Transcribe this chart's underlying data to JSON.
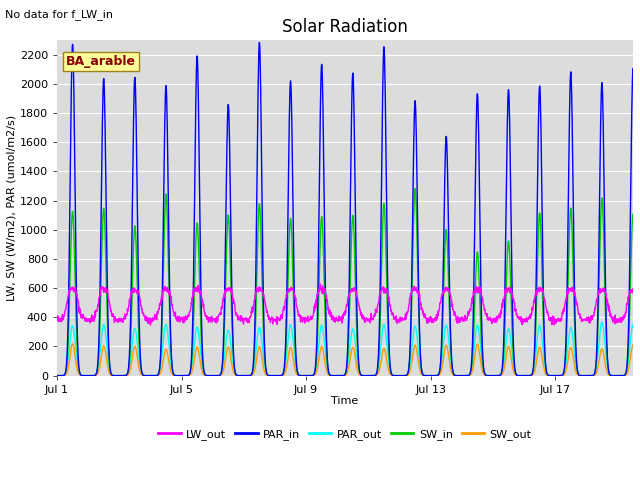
{
  "title": "Solar Radiation",
  "top_note": "No data for f_LW_in",
  "xlabel": "Time",
  "ylabel": "LW, SW (W/m2), PAR (umol/m2/s)",
  "legend_label": "BA_arable",
  "ylim": [
    0,
    2300
  ],
  "yticks": [
    0,
    200,
    400,
    600,
    800,
    1000,
    1200,
    1400,
    1600,
    1800,
    2000,
    2200
  ],
  "xtick_labels": [
    "Jul 1",
    "Jul 5",
    "Jul 9",
    "Jul 13",
    "Jul 17"
  ],
  "xtick_positions": [
    0,
    4,
    8,
    12,
    16
  ],
  "xlim": [
    0,
    18.5
  ],
  "n_days": 19,
  "dt": 0.25,
  "series": {
    "LW_out": {
      "color": "#ff00ff",
      "lw": 1.0
    },
    "PAR_in": {
      "color": "#0000ff",
      "lw": 1.0
    },
    "PAR_out": {
      "color": "#00ffff",
      "lw": 1.0
    },
    "SW_in": {
      "color": "#00cc00",
      "lw": 1.0
    },
    "SW_out": {
      "color": "#ff9900",
      "lw": 1.0
    }
  },
  "plot_bg_color": "#dcdcdc",
  "fig_bg_color": "#ffffff",
  "grid_color": "#ffffff",
  "title_fontsize": 12,
  "label_fontsize": 8,
  "tick_fontsize": 8,
  "legend_fontsize": 8,
  "figsize": [
    6.4,
    4.8
  ],
  "dpi": 100
}
